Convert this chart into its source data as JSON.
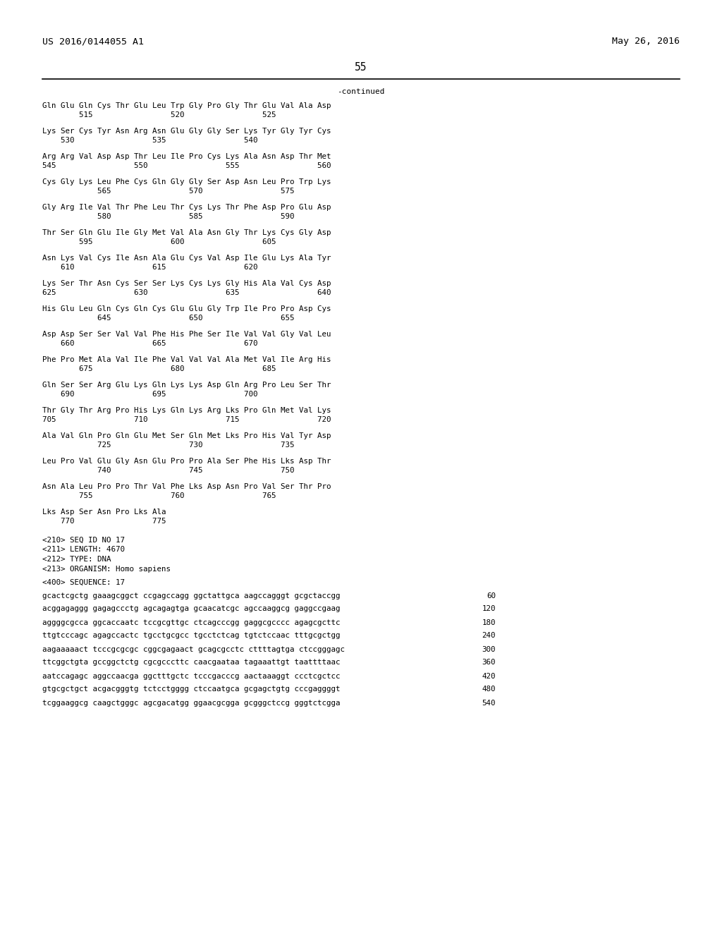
{
  "header_left": "US 2016/0144055 A1",
  "header_right": "May 26, 2016",
  "page_number": "55",
  "continued_label": "-continued",
  "background_color": "#ffffff",
  "text_color": "#000000",
  "mono_font": "DejaVu Sans Mono",
  "actual_seq_lines": [
    {
      "text": "Gln Glu Gln Cys Thr Glu Leu Trp Gly Pro Gly Thr Glu Val Ala Asp",
      "num_line": "        515                 520                 525"
    },
    {
      "text": "Lys Ser Cys Tyr Asn Arg Asn Glu Gly Gly Ser Lys Tyr Gly Tyr Cys",
      "num_line": "    530                 535                 540"
    },
    {
      "text": "Arg Arg Val Asp Asp Thr Leu Ile Pro Cys Lys Ala Asn Asp Thr Met",
      "num_line": "545                 550                 555                 560"
    },
    {
      "text": "Cys Gly Lys Leu Phe Cys Gln Gly Gly Ser Asp Asn Leu Pro Trp Lys",
      "num_line": "            565                 570                 575"
    },
    {
      "text": "Gly Arg Ile Val Thr Phe Leu Thr Cys Lys Thr Phe Asp Pro Glu Asp",
      "num_line": "            580                 585                 590"
    },
    {
      "text": "Thr Ser Gln Glu Ile Gly Met Val Ala Asn Gly Thr Lys Cys Gly Asp",
      "num_line": "        595                 600                 605"
    },
    {
      "text": "Asn Lys Val Cys Ile Asn Ala Glu Cys Val Asp Ile Glu Lys Ala Tyr",
      "num_line": "    610                 615                 620"
    },
    {
      "text": "Lys Ser Thr Asn Cys Ser Ser Lys Cys Lys Gly His Ala Val Cys Asp",
      "num_line": "625                 630                 635                 640"
    },
    {
      "text": "His Glu Leu Gln Cys Gln Cys Glu Glu Gly Trp Ile Pro Pro Asp Cys",
      "num_line": "            645                 650                 655"
    },
    {
      "text": "Asp Asp Ser Ser Val Val Phe His Phe Ser Ile Val Val Gly Val Leu",
      "num_line": "    660                 665                 670"
    },
    {
      "text": "Phe Pro Met Ala Val Ile Phe Val Val Val Ala Met Val Ile Arg His",
      "num_line": "        675                 680                 685"
    },
    {
      "text": "Gln Ser Ser Arg Glu Lys Gln Lys Lys Asp Gln Arg Pro Leu Ser Thr",
      "num_line": "    690                 695                 700"
    },
    {
      "text": "Thr Gly Thr Arg Pro His Lys Gln Lys Arg Lks Pro Gln Met Val Lys",
      "num_line": "705                 710                 715                 720"
    },
    {
      "text": "Ala Val Gln Pro Gln Glu Met Ser Gln Met Lks Pro His Val Tyr Asp",
      "num_line": "            725                 730                 735"
    },
    {
      "text": "Leu Pro Val Glu Gly Asn Glu Pro Pro Ala Ser Phe His Lks Asp Thr",
      "num_line": "            740                 745                 750"
    },
    {
      "text": "Asn Ala Leu Pro Pro Thr Val Phe Lks Asp Asn Pro Val Ser Thr Pro",
      "num_line": "        755                 760                 765"
    },
    {
      "text": "Lks Asp Ser Asn Pro Lks Ala",
      "num_line": "    770                 775"
    }
  ],
  "meta_lines": [
    "<210> SEQ ID NO 17",
    "<211> LENGTH: 4670",
    "<212> TYPE: DNA",
    "<213> ORGANISM: Homo sapiens"
  ],
  "seq_header": "<400> SEQUENCE: 17",
  "dna_lines": [
    {
      "seq": "gcactcgctg gaaagcggct ccgagccagg ggctattgca aagccagggt gcgctaccgg",
      "num": "60"
    },
    {
      "seq": "acggagaggg gagagccctg agcagagtga gcaacatcgc agccaaggcg gaggccgaag",
      "num": "120"
    },
    {
      "seq": "aggggcgcca ggcaccaatc tccgcgttgc ctcagcccgg gaggcgcccc agagcgcttc",
      "num": "180"
    },
    {
      "seq": "ttgtcccagc agagccactc tgcctgcgcc tgcctctcag tgtctccaac tttgcgctgg",
      "num": "240"
    },
    {
      "seq": "aagaaaaact tcccgcgcgc cggcgagaact gcagcgcctc cttttagtga ctccgggagc",
      "num": "300"
    },
    {
      "seq": "ttcggctgta gccggctctg cgcgcccttc caacgaataa tagaaattgt taattttaac",
      "num": "360"
    },
    {
      "seq": "aatccagagc aggccaacga ggctttgctc tcccgacccg aactaaaggt ccctcgctcc",
      "num": "420"
    },
    {
      "seq": "gtgcgctgct acgacgggtg tctcctgggg ctccaatgca gcgagctgtg cccgaggggt",
      "num": "480"
    },
    {
      "seq": "tcggaaggcg caagctgggc agcgacatgg ggaacgcgga gcgggctccg gggtctcgga",
      "num": "540"
    }
  ]
}
